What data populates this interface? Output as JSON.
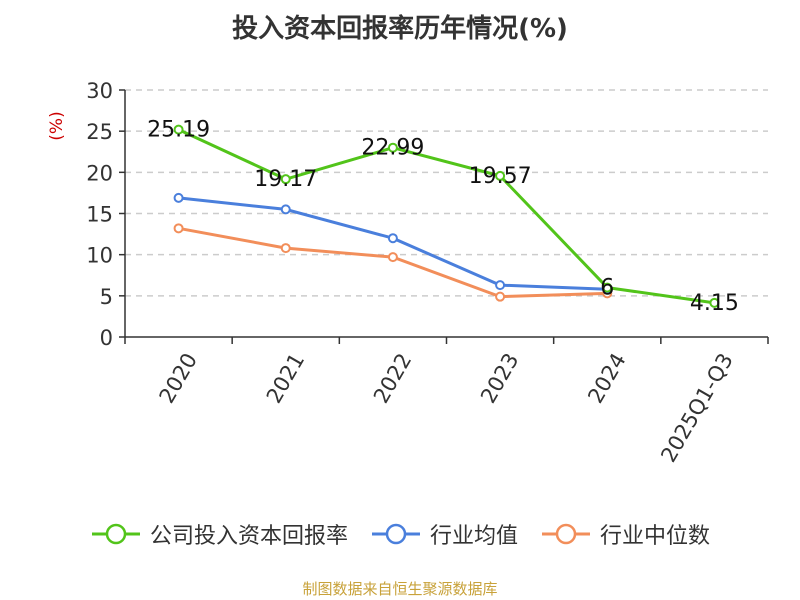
{
  "chart_data": {
    "type": "line",
    "title": "投入资本回报率历年情况(%)",
    "ylabel": "(%)",
    "xlabel": "",
    "categories": [
      "2020",
      "2021",
      "2022",
      "2023",
      "2024",
      "2025Q1-Q3"
    ],
    "ylim": [
      0,
      30
    ],
    "yticks": [
      0,
      5,
      10,
      15,
      20,
      25,
      30
    ],
    "grid": true,
    "legend_position": "bottom",
    "series": [
      {
        "name": "公司投入资本回报率",
        "color": "#52c41a",
        "values": [
          25.19,
          19.17,
          22.99,
          19.57,
          6,
          4.15
        ],
        "labels": [
          "25.19",
          "19.17",
          "22.99",
          "19.57",
          "6",
          "4.15"
        ]
      },
      {
        "name": "行业均值",
        "color": "#4a7fdc",
        "values": [
          16.9,
          15.5,
          12.0,
          6.3,
          5.8,
          null
        ],
        "labels": []
      },
      {
        "name": "行业中位数",
        "color": "#f28e5a",
        "values": [
          13.2,
          10.8,
          9.7,
          4.9,
          5.3,
          null
        ],
        "labels": []
      }
    ]
  },
  "footer": "制图数据来自恒生聚源数据库"
}
